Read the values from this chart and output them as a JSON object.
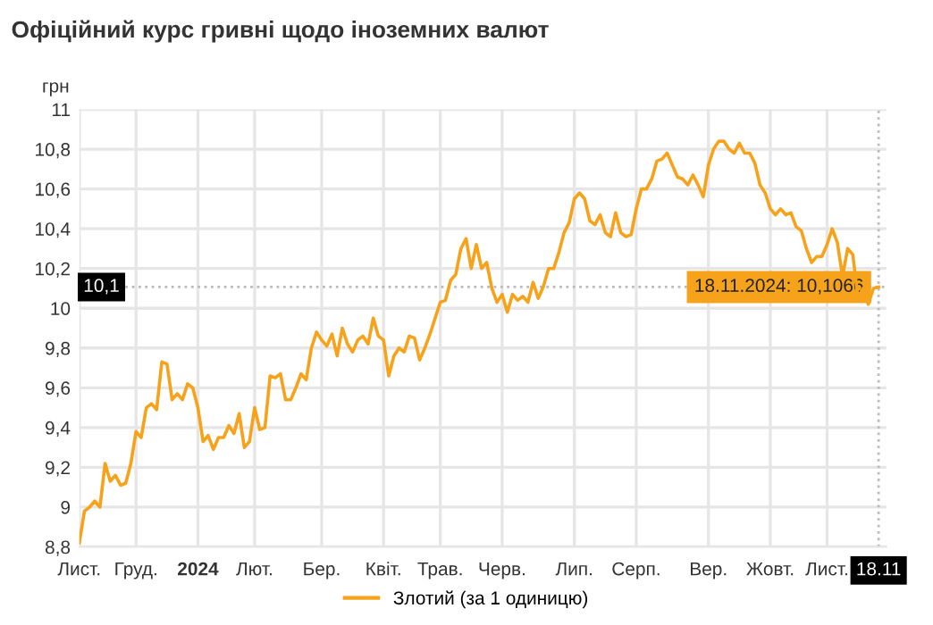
{
  "chart_data": {
    "type": "line",
    "title": "Офіційний курс гривні щодо іноземних валют",
    "ylabel": "грн",
    "categories": [
      "Лист.",
      null,
      null,
      null,
      null,
      null,
      null,
      null,
      null,
      null,
      null,
      "Груд.",
      null,
      null,
      null,
      null,
      null,
      null,
      null,
      null,
      null,
      null,
      null,
      "2024",
      null,
      null,
      null,
      null,
      null,
      null,
      null,
      null,
      null,
      null,
      "Лют.",
      null,
      null,
      null,
      null,
      null,
      null,
      null,
      null,
      null,
      null,
      null,
      null,
      "Бер.",
      null,
      null,
      null,
      null,
      null,
      null,
      null,
      null,
      null,
      null,
      null,
      "Квіт.",
      null,
      null,
      null,
      null,
      null,
      null,
      null,
      null,
      null,
      null,
      "Трав.",
      null,
      null,
      null,
      null,
      null,
      null,
      null,
      null,
      null,
      null,
      null,
      "Черв.",
      null,
      null,
      null,
      null,
      null,
      null,
      null,
      null,
      null,
      null,
      null,
      null,
      null,
      "Лип.",
      null,
      null,
      null,
      null,
      null,
      null,
      null,
      null,
      null,
      null,
      null,
      "Серп.",
      null,
      null,
      null,
      null,
      null,
      null,
      null,
      null,
      null,
      null,
      null,
      null,
      null,
      "Вер.",
      null,
      null,
      null,
      null,
      null,
      null,
      null,
      null,
      null,
      null,
      null,
      "Жовт.",
      null,
      null,
      null,
      null,
      null,
      null,
      null,
      null,
      null,
      null,
      "Лист.",
      null,
      null,
      null,
      null,
      null,
      null,
      null,
      null,
      null,
      "18.11"
    ],
    "series": [
      {
        "name": "Злотий (за 1 одиницю)",
        "color": "#f7a21b",
        "values": [
          8.82,
          8.98,
          9.0,
          9.03,
          9.0,
          9.22,
          9.13,
          9.16,
          9.11,
          9.12,
          9.22,
          9.38,
          9.35,
          9.5,
          9.52,
          9.49,
          9.73,
          9.72,
          9.54,
          9.57,
          9.54,
          9.62,
          9.6,
          9.5,
          9.33,
          9.36,
          9.29,
          9.35,
          9.35,
          9.41,
          9.37,
          9.47,
          9.3,
          9.33,
          9.5,
          9.39,
          9.4,
          9.66,
          9.65,
          9.67,
          9.54,
          9.54,
          9.6,
          9.67,
          9.64,
          9.8,
          9.88,
          9.84,
          9.81,
          9.87,
          9.76,
          9.9,
          9.82,
          9.78,
          9.84,
          9.86,
          9.82,
          9.95,
          9.86,
          9.84,
          9.66,
          9.76,
          9.8,
          9.78,
          9.86,
          9.85,
          9.74,
          9.8,
          9.87,
          9.95,
          10.03,
          10.04,
          10.14,
          10.17,
          10.3,
          10.35,
          10.2,
          10.32,
          10.2,
          10.23,
          10.1,
          10.03,
          10.07,
          9.98,
          10.07,
          10.04,
          10.06,
          10.03,
          10.13,
          10.05,
          10.11,
          10.2,
          10.2,
          10.28,
          10.38,
          10.43,
          10.55,
          10.58,
          10.55,
          10.44,
          10.42,
          10.47,
          10.38,
          10.36,
          10.48,
          10.38,
          10.36,
          10.37,
          10.5,
          10.6,
          10.6,
          10.65,
          10.74,
          10.75,
          10.78,
          10.72,
          10.66,
          10.65,
          10.62,
          10.67,
          10.62,
          10.56,
          10.72,
          10.8,
          10.84,
          10.84,
          10.8,
          10.78,
          10.83,
          10.78,
          10.78,
          10.73,
          10.62,
          10.58,
          10.5,
          10.47,
          10.5,
          10.47,
          10.48,
          10.41,
          10.39,
          10.3,
          10.23,
          10.26,
          10.26,
          10.32,
          10.4,
          10.33,
          10.16,
          10.3,
          10.27,
          10.05,
          10.1,
          10.02,
          10.1,
          10.1066
        ]
      }
    ],
    "ylim": [
      8.8,
      11
    ],
    "yticks": [
      {
        "value": 8.8,
        "label": "8,8"
      },
      9,
      {
        "value": 9.2,
        "label": "9,2"
      },
      {
        "value": 9.4,
        "label": "9,4"
      },
      {
        "value": 9.6,
        "label": "9,6"
      },
      {
        "value": 9.8,
        "label": "9,8"
      },
      10,
      {
        "value": 10.2,
        "label": "10,2"
      },
      {
        "value": 10.4,
        "label": "10,4"
      },
      {
        "value": 10.6,
        "label": "10,6"
      },
      {
        "value": 10.8,
        "label": "10,8"
      },
      11
    ],
    "ref_lines": [
      {
        "axis": "y",
        "value": 10.1066,
        "label": "10,1",
        "color": "#bbbbbb",
        "line_style": "dotted"
      },
      {
        "axis": "x",
        "value": "18.11",
        "color": "#bbbbbb",
        "line_style": "dotted"
      }
    ],
    "annotations": [
      {
        "text": "18.11.2024: 10,1066",
        "x": "18.11",
        "y": 10.1066
      }
    ],
    "grid": true,
    "legend": "bottom",
    "marker": "none",
    "line_style": "solid"
  }
}
